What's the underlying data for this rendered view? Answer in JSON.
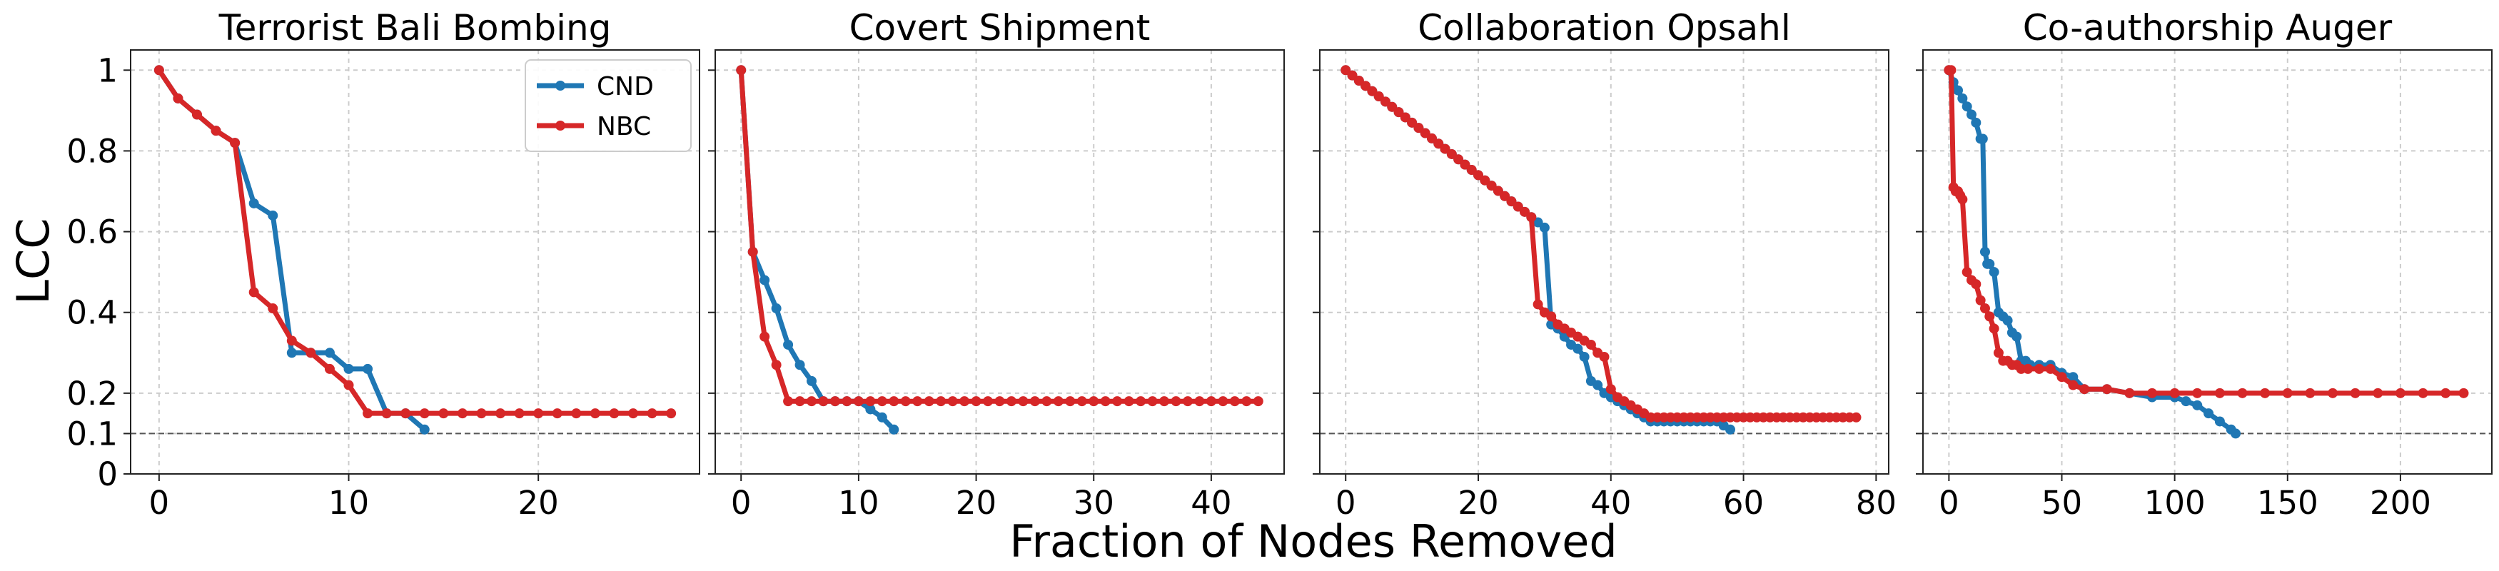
{
  "figure": {
    "ylabel": "LCC",
    "xlabel": "Fraction of Nodes Removed"
  },
  "colors": {
    "CND": "#1f77b4",
    "NBC": "#d62728",
    "threshold": "#555555"
  },
  "chart_data": [
    {
      "type": "line",
      "title": "Terrorist Bali Bombing",
      "xlim": [
        -1.5,
        28.5
      ],
      "ylim": [
        0,
        1.05
      ],
      "xticks": [
        0,
        10,
        20
      ],
      "yticks": [
        0,
        0.1,
        0.2,
        0.4,
        0.6,
        0.8,
        1
      ],
      "ytick_labels": [
        "0",
        "0.1",
        "0.2",
        "0.4",
        "0.6",
        "0.8",
        "1"
      ],
      "threshold": 0.1,
      "legend": {
        "position": "top-right",
        "entries": [
          "CND",
          "NBC"
        ]
      },
      "series": [
        {
          "name": "CND",
          "x": [
            0,
            1,
            2,
            3,
            4,
            5,
            6,
            7,
            8,
            9,
            10,
            11,
            12,
            13,
            14
          ],
          "y": [
            1.0,
            0.93,
            0.89,
            0.85,
            0.82,
            0.67,
            0.64,
            0.3,
            0.3,
            0.3,
            0.26,
            0.26,
            0.15,
            0.15,
            0.11
          ]
        },
        {
          "name": "NBC",
          "x": [
            0,
            1,
            2,
            3,
            4,
            5,
            6,
            7,
            8,
            9,
            10,
            11,
            12,
            13,
            14,
            15,
            16,
            17,
            18,
            19,
            20,
            21,
            22,
            23,
            24,
            25,
            26,
            27
          ],
          "y": [
            1.0,
            0.93,
            0.89,
            0.85,
            0.82,
            0.45,
            0.41,
            0.33,
            0.3,
            0.26,
            0.22,
            0.15,
            0.15,
            0.15,
            0.15,
            0.15,
            0.15,
            0.15,
            0.15,
            0.15,
            0.15,
            0.15,
            0.15,
            0.15,
            0.15,
            0.15,
            0.15,
            0.15
          ]
        }
      ]
    },
    {
      "type": "line",
      "title": "Covert Shipment",
      "xlim": [
        -2.2,
        46.2
      ],
      "ylim": [
        0,
        1.05
      ],
      "xticks": [
        0,
        10,
        20,
        30,
        40
      ],
      "yticks": [
        0,
        0.1,
        0.2,
        0.4,
        0.6,
        0.8,
        1
      ],
      "threshold": 0.1,
      "series": [
        {
          "name": "CND",
          "x": [
            0,
            1,
            2,
            3,
            4,
            5,
            6,
            7,
            8,
            9,
            10,
            11,
            12,
            13
          ],
          "y": [
            1.0,
            0.55,
            0.48,
            0.41,
            0.32,
            0.27,
            0.23,
            0.18,
            0.18,
            0.18,
            0.18,
            0.16,
            0.14,
            0.11
          ]
        },
        {
          "name": "NBC",
          "x": [
            0,
            1,
            2,
            3,
            4,
            5,
            6,
            7,
            8,
            9,
            10,
            11,
            12,
            13,
            14,
            15,
            16,
            17,
            18,
            19,
            20,
            21,
            22,
            23,
            24,
            25,
            26,
            27,
            28,
            29,
            30,
            31,
            32,
            33,
            34,
            35,
            36,
            37,
            38,
            39,
            40,
            41,
            42,
            43,
            44
          ],
          "y": [
            1.0,
            0.55,
            0.34,
            0.27,
            0.18,
            0.18,
            0.18,
            0.18,
            0.18,
            0.18,
            0.18,
            0.18,
            0.18,
            0.18,
            0.18,
            0.18,
            0.18,
            0.18,
            0.18,
            0.18,
            0.18,
            0.18,
            0.18,
            0.18,
            0.18,
            0.18,
            0.18,
            0.18,
            0.18,
            0.18,
            0.18,
            0.18,
            0.18,
            0.18,
            0.18,
            0.18,
            0.18,
            0.18,
            0.18,
            0.18,
            0.18,
            0.18,
            0.18,
            0.18,
            0.18
          ]
        }
      ]
    },
    {
      "type": "line",
      "title": "Collaboration Opsahl",
      "xlim": [
        -3.9,
        81.9
      ],
      "ylim": [
        0,
        1.05
      ],
      "xticks": [
        0,
        20,
        40,
        60,
        80
      ],
      "yticks": [
        0,
        0.1,
        0.2,
        0.4,
        0.6,
        0.8,
        1
      ],
      "threshold": 0.1,
      "series": [
        {
          "name": "CND",
          "x": [
            0,
            1,
            2,
            3,
            4,
            5,
            6,
            7,
            8,
            9,
            10,
            11,
            12,
            13,
            14,
            15,
            16,
            17,
            18,
            19,
            20,
            21,
            22,
            23,
            24,
            25,
            26,
            27,
            28,
            29,
            30,
            31,
            32,
            33,
            34,
            35,
            36,
            37,
            38,
            39,
            40,
            41,
            42,
            43,
            44,
            45,
            46,
            47,
            48,
            49,
            50,
            51,
            52,
            53,
            54,
            55,
            56,
            57,
            58
          ],
          "y": [
            1.0,
            0.987,
            0.974,
            0.961,
            0.948,
            0.935,
            0.922,
            0.909,
            0.896,
            0.883,
            0.87,
            0.857,
            0.844,
            0.831,
            0.818,
            0.805,
            0.792,
            0.779,
            0.766,
            0.753,
            0.74,
            0.727,
            0.714,
            0.701,
            0.688,
            0.675,
            0.662,
            0.649,
            0.636,
            0.623,
            0.61,
            0.37,
            0.36,
            0.34,
            0.32,
            0.31,
            0.29,
            0.23,
            0.22,
            0.2,
            0.19,
            0.18,
            0.17,
            0.16,
            0.15,
            0.14,
            0.13,
            0.13,
            0.13,
            0.13,
            0.13,
            0.13,
            0.13,
            0.13,
            0.13,
            0.13,
            0.13,
            0.12,
            0.11
          ]
        },
        {
          "name": "NBC",
          "x": [
            0,
            1,
            2,
            3,
            4,
            5,
            6,
            7,
            8,
            9,
            10,
            11,
            12,
            13,
            14,
            15,
            16,
            17,
            18,
            19,
            20,
            21,
            22,
            23,
            24,
            25,
            26,
            27,
            28,
            29,
            30,
            31,
            32,
            33,
            34,
            35,
            36,
            37,
            38,
            39,
            40,
            41,
            42,
            43,
            44,
            45,
            46,
            47,
            48,
            49,
            50,
            51,
            52,
            53,
            54,
            55,
            56,
            57,
            58,
            59,
            60,
            61,
            62,
            63,
            64,
            65,
            66,
            67,
            68,
            69,
            70,
            71,
            72,
            73,
            74,
            75,
            76,
            77
          ],
          "y": [
            1.0,
            0.987,
            0.974,
            0.961,
            0.948,
            0.935,
            0.922,
            0.909,
            0.896,
            0.883,
            0.87,
            0.857,
            0.844,
            0.831,
            0.818,
            0.805,
            0.792,
            0.779,
            0.766,
            0.753,
            0.74,
            0.727,
            0.714,
            0.701,
            0.688,
            0.675,
            0.662,
            0.649,
            0.636,
            0.42,
            0.4,
            0.39,
            0.37,
            0.36,
            0.35,
            0.34,
            0.33,
            0.32,
            0.3,
            0.29,
            0.21,
            0.19,
            0.18,
            0.17,
            0.16,
            0.15,
            0.14,
            0.14,
            0.14,
            0.14,
            0.14,
            0.14,
            0.14,
            0.14,
            0.14,
            0.14,
            0.14,
            0.14,
            0.14,
            0.14,
            0.14,
            0.14,
            0.14,
            0.14,
            0.14,
            0.14,
            0.14,
            0.14,
            0.14,
            0.14,
            0.14,
            0.14,
            0.14,
            0.14,
            0.14,
            0.14,
            0.14,
            0.14
          ]
        }
      ]
    },
    {
      "type": "line",
      "title": "Co-authorship Auger",
      "xlim": [
        -11.5,
        240.5
      ],
      "ylim": [
        0,
        1.05
      ],
      "xticks": [
        0,
        50,
        100,
        150,
        200
      ],
      "yticks": [
        0,
        0.1,
        0.2,
        0.4,
        0.6,
        0.8,
        1
      ],
      "threshold": 0.1,
      "series": [
        {
          "name": "CND",
          "x": [
            0,
            2,
            4,
            6,
            8,
            10,
            12,
            14,
            15,
            16,
            17,
            18,
            20,
            22,
            24,
            26,
            28,
            30,
            32,
            34,
            36,
            40,
            45,
            50,
            55,
            60,
            70,
            80,
            90,
            100,
            105,
            110,
            115,
            120,
            125,
            127
          ],
          "y": [
            1.0,
            0.97,
            0.95,
            0.93,
            0.91,
            0.89,
            0.87,
            0.83,
            0.83,
            0.55,
            0.52,
            0.52,
            0.5,
            0.4,
            0.39,
            0.38,
            0.35,
            0.34,
            0.28,
            0.28,
            0.27,
            0.27,
            0.27,
            0.25,
            0.24,
            0.21,
            0.21,
            0.2,
            0.19,
            0.19,
            0.18,
            0.17,
            0.15,
            0.13,
            0.11,
            0.1
          ]
        },
        {
          "name": "NBC",
          "x": [
            0,
            1,
            2,
            3,
            4,
            5,
            6,
            8,
            10,
            12,
            14,
            16,
            18,
            20,
            22,
            24,
            26,
            28,
            30,
            32,
            35,
            40,
            45,
            50,
            55,
            60,
            70,
            80,
            90,
            100,
            110,
            120,
            130,
            140,
            150,
            160,
            170,
            180,
            190,
            200,
            210,
            220,
            228
          ],
          "y": [
            1.0,
            1.0,
            0.71,
            0.7,
            0.7,
            0.69,
            0.68,
            0.5,
            0.48,
            0.47,
            0.43,
            0.41,
            0.39,
            0.36,
            0.3,
            0.28,
            0.28,
            0.27,
            0.27,
            0.26,
            0.26,
            0.26,
            0.26,
            0.24,
            0.22,
            0.21,
            0.21,
            0.2,
            0.2,
            0.2,
            0.2,
            0.2,
            0.2,
            0.2,
            0.2,
            0.2,
            0.2,
            0.2,
            0.2,
            0.2,
            0.2,
            0.2,
            0.2
          ]
        }
      ]
    }
  ]
}
